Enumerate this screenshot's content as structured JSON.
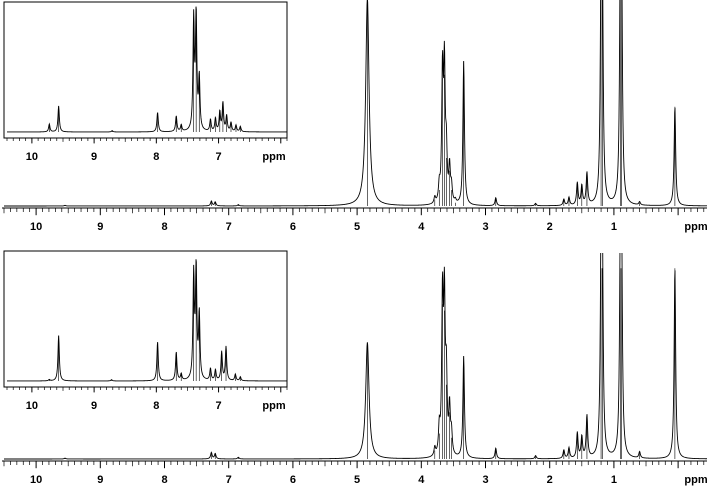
{
  "chart_data": [
    {
      "type": "line",
      "panel": "top-main",
      "xlabel": "ppm",
      "xlim": [
        10.5,
        -0.45
      ],
      "x_reversed": true,
      "x_ticks": [
        "10",
        "9",
        "8",
        "7",
        "6",
        "5",
        "4",
        "3",
        "2",
        "1"
      ],
      "grid": false,
      "peaks": [
        {
          "x": 9.55,
          "y": 0.004
        },
        {
          "x": 7.27,
          "y": 0.03
        },
        {
          "x": 7.21,
          "y": 0.025
        },
        {
          "x": 6.85,
          "y": 0.008
        },
        {
          "x": 4.84,
          "y": 1.3
        },
        {
          "x": 3.79,
          "y": 0.04
        },
        {
          "x": 3.72,
          "y": 0.1
        },
        {
          "x": 3.67,
          "y": 0.8
        },
        {
          "x": 3.64,
          "y": 0.82
        },
        {
          "x": 3.61,
          "y": 0.3
        },
        {
          "x": 3.56,
          "y": 0.22
        },
        {
          "x": 3.53,
          "y": 0.1
        },
        {
          "x": 3.47,
          "y": 0.02
        },
        {
          "x": 3.34,
          "y": 0.9
        },
        {
          "x": 2.84,
          "y": 0.05
        },
        {
          "x": 2.22,
          "y": 0.015
        },
        {
          "x": 1.78,
          "y": 0.04
        },
        {
          "x": 1.7,
          "y": 0.05
        },
        {
          "x": 1.57,
          "y": 0.14
        },
        {
          "x": 1.5,
          "y": 0.12
        },
        {
          "x": 1.42,
          "y": 0.2
        },
        {
          "x": 1.2,
          "y": 1.3
        },
        {
          "x": 1.18,
          "y": 1.3
        },
        {
          "x": 0.9,
          "y": 1.3
        },
        {
          "x": 0.88,
          "y": 1.3
        },
        {
          "x": 0.6,
          "y": 0.02
        },
        {
          "x": 0.05,
          "y": 0.62
        }
      ]
    },
    {
      "type": "line",
      "panel": "top-inset",
      "xlabel": "ppm",
      "xlim": [
        10.4,
        5.9
      ],
      "x_reversed": true,
      "x_ticks": [
        "10",
        "9",
        "8",
        "7"
      ],
      "grid": false,
      "peaks": [
        {
          "x": 9.72,
          "y": 0.06
        },
        {
          "x": 9.57,
          "y": 0.2
        },
        {
          "x": 8.71,
          "y": 0.01
        },
        {
          "x": 7.98,
          "y": 0.15
        },
        {
          "x": 7.68,
          "y": 0.12
        },
        {
          "x": 7.6,
          "y": 0.05
        },
        {
          "x": 7.4,
          "y": 0.85
        },
        {
          "x": 7.36,
          "y": 0.88
        },
        {
          "x": 7.31,
          "y": 0.4
        },
        {
          "x": 7.13,
          "y": 0.09
        },
        {
          "x": 7.05,
          "y": 0.1
        },
        {
          "x": 6.98,
          "y": 0.15
        },
        {
          "x": 6.93,
          "y": 0.22
        },
        {
          "x": 6.87,
          "y": 0.12
        },
        {
          "x": 6.8,
          "y": 0.07
        },
        {
          "x": 6.72,
          "y": 0.05
        },
        {
          "x": 6.65,
          "y": 0.04
        }
      ]
    },
    {
      "type": "line",
      "panel": "bottom-main",
      "xlabel": "ppm",
      "xlim": [
        10.5,
        -0.45
      ],
      "x_reversed": true,
      "x_ticks": [
        "10",
        "9",
        "8",
        "7",
        "6",
        "5",
        "4",
        "3",
        "2",
        "1"
      ],
      "grid": false,
      "peaks": [
        {
          "x": 9.55,
          "y": 0.004
        },
        {
          "x": 7.27,
          "y": 0.03
        },
        {
          "x": 7.21,
          "y": 0.025
        },
        {
          "x": 6.85,
          "y": 0.008
        },
        {
          "x": 4.84,
          "y": 0.55
        },
        {
          "x": 3.79,
          "y": 0.04
        },
        {
          "x": 3.72,
          "y": 0.12
        },
        {
          "x": 3.67,
          "y": 0.73
        },
        {
          "x": 3.64,
          "y": 0.7
        },
        {
          "x": 3.61,
          "y": 0.35
        },
        {
          "x": 3.56,
          "y": 0.22
        },
        {
          "x": 3.53,
          "y": 0.1
        },
        {
          "x": 3.34,
          "y": 0.48
        },
        {
          "x": 2.84,
          "y": 0.05
        },
        {
          "x": 2.22,
          "y": 0.015
        },
        {
          "x": 1.78,
          "y": 0.04
        },
        {
          "x": 1.7,
          "y": 0.05
        },
        {
          "x": 1.57,
          "y": 0.12
        },
        {
          "x": 1.5,
          "y": 0.1
        },
        {
          "x": 1.42,
          "y": 0.2
        },
        {
          "x": 1.2,
          "y": 0.9
        },
        {
          "x": 1.18,
          "y": 0.9
        },
        {
          "x": 0.9,
          "y": 0.9
        },
        {
          "x": 0.88,
          "y": 0.9
        },
        {
          "x": 0.6,
          "y": 0.03
        },
        {
          "x": 0.05,
          "y": 0.9
        }
      ]
    },
    {
      "type": "line",
      "panel": "bottom-inset",
      "xlabel": "ppm",
      "xlim": [
        10.4,
        5.9
      ],
      "x_reversed": true,
      "x_ticks": [
        "10",
        "9",
        "8",
        "7"
      ],
      "grid": false,
      "peaks": [
        {
          "x": 9.72,
          "y": 0.01
        },
        {
          "x": 9.57,
          "y": 0.35
        },
        {
          "x": 8.72,
          "y": 0.01
        },
        {
          "x": 7.98,
          "y": 0.3
        },
        {
          "x": 7.68,
          "y": 0.22
        },
        {
          "x": 7.6,
          "y": 0.05
        },
        {
          "x": 7.4,
          "y": 0.8
        },
        {
          "x": 7.36,
          "y": 0.85
        },
        {
          "x": 7.31,
          "y": 0.5
        },
        {
          "x": 7.13,
          "y": 0.09
        },
        {
          "x": 7.05,
          "y": 0.08
        },
        {
          "x": 6.95,
          "y": 0.22
        },
        {
          "x": 6.88,
          "y": 0.26
        },
        {
          "x": 6.73,
          "y": 0.05
        },
        {
          "x": 6.65,
          "y": 0.03
        }
      ]
    }
  ]
}
